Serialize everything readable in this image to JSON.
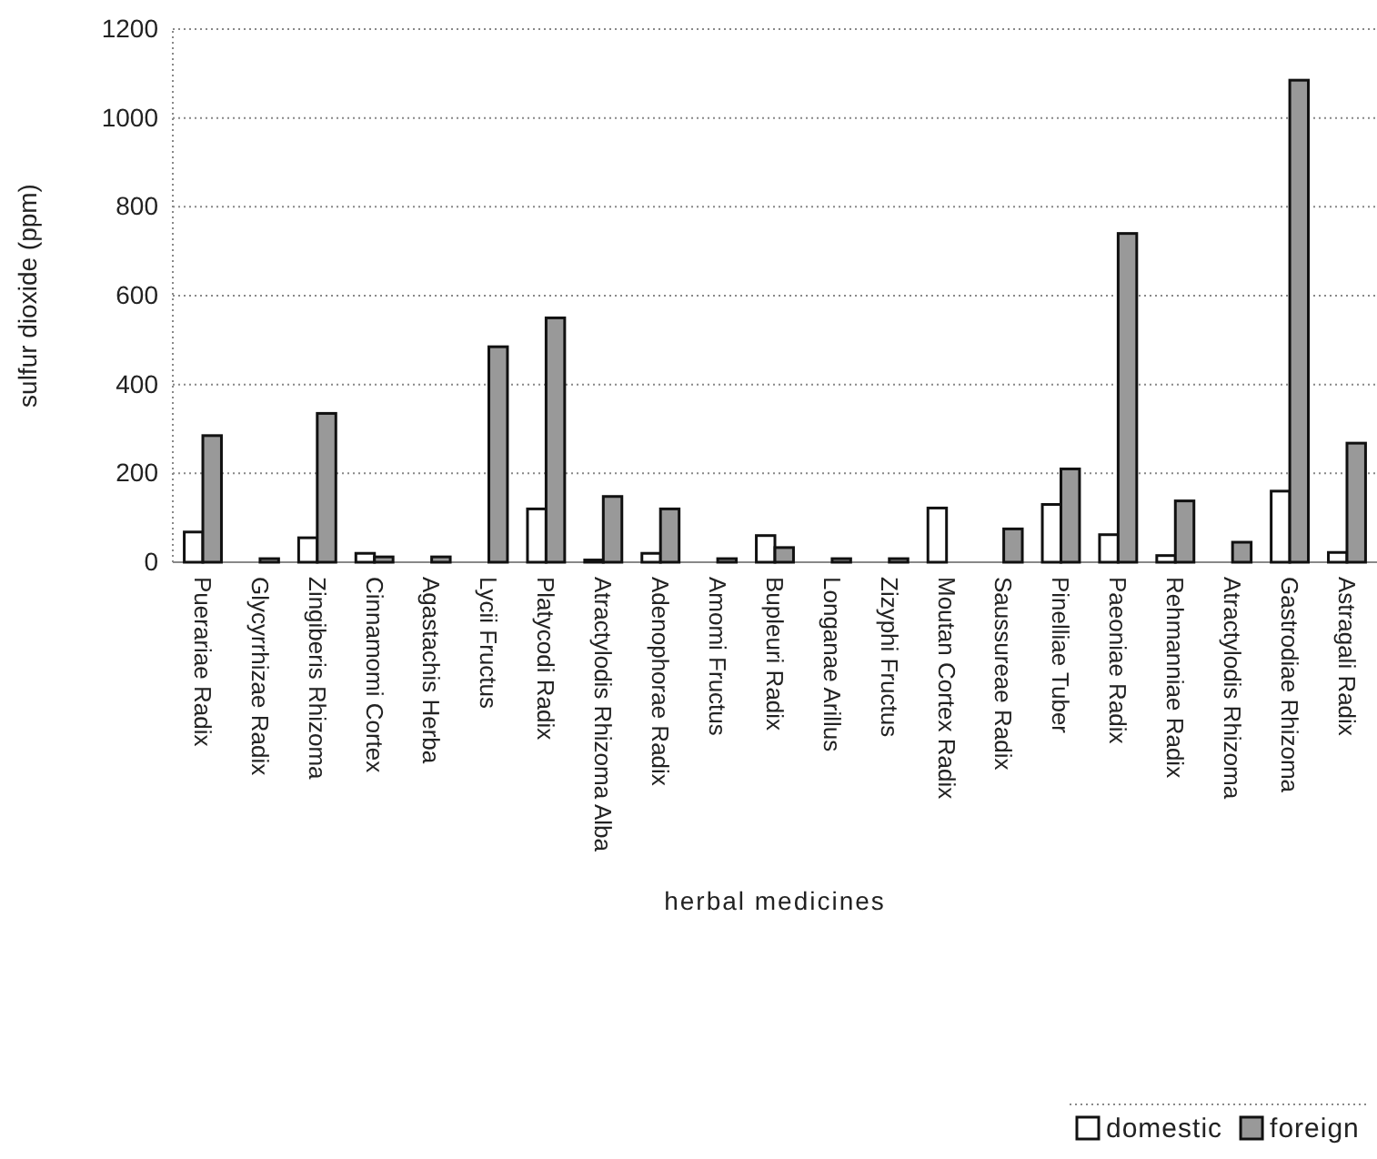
{
  "chart_data": {
    "type": "bar",
    "xlabel": "herbal medicines",
    "ylabel": "sulfur dioxide (ppm)",
    "categories": [
      "Puerariae Radix",
      "Glycyrrhizae Radix",
      "Zingiberis Rhizoma",
      "Cinnamomi Cortex",
      "Agastachis Herba",
      "Lycii Fructus",
      "Platycodi Radix",
      "Atractylodis Rhizoma Alba",
      "Adenophorae Radix",
      "Amomi Fructus",
      "Bupleuri Radix",
      "Longanae Arillus",
      "Zizyphi Fructus",
      "Moutan Cortex Radix",
      "Saussureae Radix",
      "Pinelliae Tuber",
      "Paeoniae Radix",
      "Rehmanniae Radix",
      "Atractylodis Rhizoma",
      "Gastrodiae Rhizoma",
      "Astragali Radix"
    ],
    "series": [
      {
        "name": "domestic",
        "color": "#ffffff",
        "values": [
          68,
          0,
          55,
          20,
          0,
          0,
          120,
          5,
          20,
          0,
          60,
          0,
          0,
          122,
          0,
          130,
          62,
          15,
          0,
          160,
          22
        ]
      },
      {
        "name": "foreign",
        "color": "#999999",
        "values": [
          285,
          8,
          335,
          12,
          12,
          485,
          550,
          148,
          120,
          8,
          33,
          8,
          8,
          0,
          75,
          210,
          740,
          138,
          45,
          1085,
          268
        ]
      }
    ],
    "ylim": [
      0,
      1200
    ],
    "yticks": [
      0,
      200,
      400,
      600,
      800,
      1000,
      1200
    ],
    "grid": "y",
    "legend": "bottom right"
  }
}
